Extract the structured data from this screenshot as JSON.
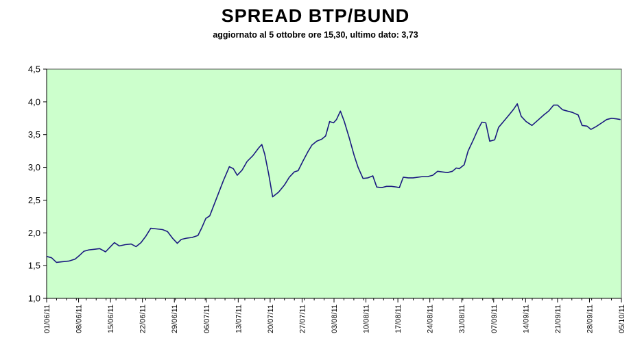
{
  "chart_data": {
    "type": "line",
    "title": "SPREAD BTP/BUND",
    "subtitle": "aggiornato al 5 ottobre ore 15,30, ultimo dato: 3,73",
    "xlabel": "",
    "ylabel": "",
    "ylim": [
      1.0,
      4.5
    ],
    "yticks": [
      "1,0",
      "1,5",
      "2,0",
      "2,5",
      "3,0",
      "3,5",
      "4,0",
      "4,5"
    ],
    "xticks": [
      "01/06/11",
      "08/06/11",
      "15/06/11",
      "22/06/11",
      "29/06/11",
      "06/07/11",
      "13/07/11",
      "20/07/11",
      "27/07/11",
      "03/08/11",
      "10/08/11",
      "17/08/11",
      "24/08/11",
      "31/08/11",
      "07/09/11",
      "14/09/11",
      "21/09/11",
      "28/09/11",
      "05/10/11"
    ],
    "background_color": "#ccffcc",
    "line_color": "#1a1a80",
    "grid": false,
    "series": [
      {
        "values": [
          [
            0,
            1.64
          ],
          [
            0.5,
            1.62
          ],
          [
            1,
            1.55
          ],
          [
            1.6,
            1.56
          ],
          [
            2.3,
            1.57
          ],
          [
            2.9,
            1.6
          ],
          [
            3.3,
            1.65
          ],
          [
            3.8,
            1.72
          ],
          [
            4.3,
            1.74
          ],
          [
            4.9,
            1.75
          ],
          [
            5.4,
            1.76
          ],
          [
            6.0,
            1.71
          ],
          [
            6.5,
            1.79
          ],
          [
            6.9,
            1.85
          ],
          [
            7.4,
            1.8
          ],
          [
            8.0,
            1.82
          ],
          [
            8.6,
            1.83
          ],
          [
            9.1,
            1.79
          ],
          [
            9.6,
            1.85
          ],
          [
            10.1,
            1.95
          ],
          [
            10.6,
            2.07
          ],
          [
            11.2,
            2.06
          ],
          [
            11.8,
            2.05
          ],
          [
            12.3,
            2.02
          ],
          [
            12.8,
            1.92
          ],
          [
            13.3,
            1.84
          ],
          [
            13.7,
            1.9
          ],
          [
            14.3,
            1.92
          ],
          [
            14.8,
            1.93
          ],
          [
            15.4,
            1.96
          ],
          [
            15.8,
            2.08
          ],
          [
            16.2,
            2.22
          ],
          [
            16.6,
            2.26
          ],
          [
            17.4,
            2.57
          ],
          [
            18.0,
            2.8
          ],
          [
            18.6,
            3.01
          ],
          [
            19.0,
            2.98
          ],
          [
            19.4,
            2.88
          ],
          [
            19.9,
            2.96
          ],
          [
            20.4,
            3.09
          ],
          [
            21.0,
            3.18
          ],
          [
            21.6,
            3.3
          ],
          [
            21.9,
            3.35
          ],
          [
            22.2,
            3.2
          ],
          [
            22.6,
            2.9
          ],
          [
            23.0,
            2.55
          ],
          [
            23.6,
            2.62
          ],
          [
            24.2,
            2.73
          ],
          [
            24.7,
            2.85
          ],
          [
            25.2,
            2.93
          ],
          [
            25.6,
            2.95
          ],
          [
            26.1,
            3.1
          ],
          [
            26.6,
            3.24
          ],
          [
            27.0,
            3.34
          ],
          [
            27.5,
            3.4
          ],
          [
            28.0,
            3.43
          ],
          [
            28.4,
            3.48
          ],
          [
            28.8,
            3.7
          ],
          [
            29.2,
            3.68
          ],
          [
            29.5,
            3.73
          ],
          [
            29.9,
            3.86
          ],
          [
            30.3,
            3.7
          ],
          [
            30.8,
            3.45
          ],
          [
            31.3,
            3.18
          ],
          [
            31.7,
            3.0
          ],
          [
            32.2,
            2.83
          ],
          [
            32.7,
            2.84
          ],
          [
            33.2,
            2.87
          ],
          [
            33.6,
            2.7
          ],
          [
            34.1,
            2.69
          ],
          [
            34.6,
            2.71
          ],
          [
            35.1,
            2.71
          ],
          [
            35.6,
            2.7
          ],
          [
            35.9,
            2.69
          ],
          [
            36.3,
            2.85
          ],
          [
            36.8,
            2.84
          ],
          [
            37.3,
            2.84
          ],
          [
            37.8,
            2.85
          ],
          [
            38.3,
            2.86
          ],
          [
            38.8,
            2.86
          ],
          [
            39.3,
            2.88
          ],
          [
            39.8,
            2.94
          ],
          [
            40.3,
            2.93
          ],
          [
            40.8,
            2.92
          ],
          [
            41.3,
            2.94
          ],
          [
            41.7,
            2.99
          ],
          [
            42.0,
            2.98
          ],
          [
            42.5,
            3.04
          ],
          [
            42.9,
            3.25
          ],
          [
            43.4,
            3.41
          ],
          [
            43.9,
            3.58
          ],
          [
            44.3,
            3.69
          ],
          [
            44.7,
            3.68
          ],
          [
            45.1,
            3.4
          ],
          [
            45.6,
            3.42
          ],
          [
            46.0,
            3.61
          ],
          [
            46.5,
            3.7
          ],
          [
            47.0,
            3.79
          ],
          [
            47.5,
            3.88
          ],
          [
            47.9,
            3.97
          ],
          [
            48.3,
            3.78
          ],
          [
            48.8,
            3.7
          ],
          [
            49.4,
            3.64
          ],
          [
            50.0,
            3.72
          ],
          [
            50.6,
            3.8
          ],
          [
            51.1,
            3.86
          ],
          [
            51.6,
            3.95
          ],
          [
            52.0,
            3.95
          ],
          [
            52.5,
            3.88
          ],
          [
            53.0,
            3.86
          ],
          [
            53.5,
            3.84
          ],
          [
            54.1,
            3.8
          ],
          [
            54.5,
            3.64
          ],
          [
            55.0,
            3.63
          ],
          [
            55.4,
            3.58
          ],
          [
            55.9,
            3.62
          ],
          [
            56.5,
            3.68
          ],
          [
            57.0,
            3.73
          ],
          [
            57.5,
            3.75
          ],
          [
            58.0,
            3.74
          ],
          [
            58.4,
            3.73
          ]
        ]
      }
    ]
  }
}
